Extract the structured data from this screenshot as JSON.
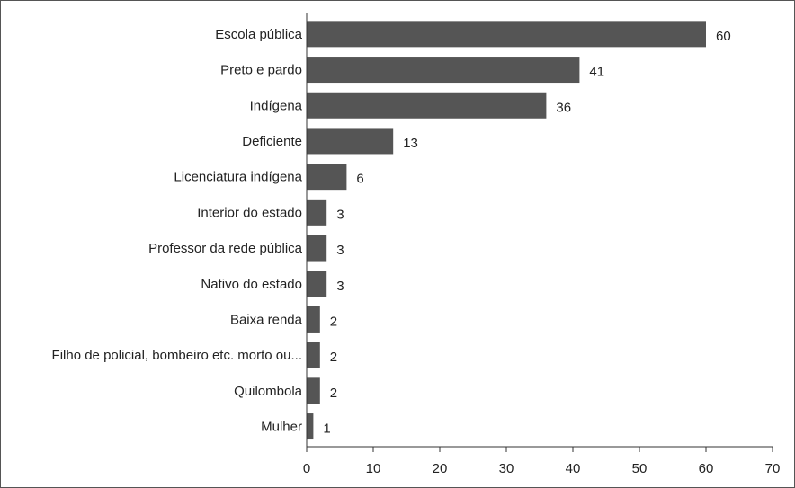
{
  "chart_data": {
    "type": "bar",
    "orientation": "horizontal",
    "categories": [
      "Escola pública",
      "Preto e pardo",
      "Indígena",
      "Deficiente",
      "Licenciatura indígena",
      "Interior do estado",
      "Professor da rede pública",
      "Nativo do estado",
      "Baixa renda",
      "Filho de policial, bombeiro etc. morto ou...",
      "Quilombola",
      "Mulher"
    ],
    "values": [
      60,
      41,
      36,
      13,
      6,
      3,
      3,
      3,
      2,
      2,
      2,
      1
    ],
    "value_labels": [
      "60",
      "41",
      "36",
      "13",
      "6",
      "3",
      "3",
      "3",
      "2",
      "2",
      "2",
      "1"
    ],
    "xlim": [
      0,
      70
    ],
    "xticks": [
      "0",
      "10",
      "20",
      "30",
      "40",
      "50",
      "60",
      "70"
    ],
    "title": "",
    "xlabel": "",
    "ylabel": "",
    "grid": false,
    "legend": "none",
    "bar_color": "#555555"
  }
}
